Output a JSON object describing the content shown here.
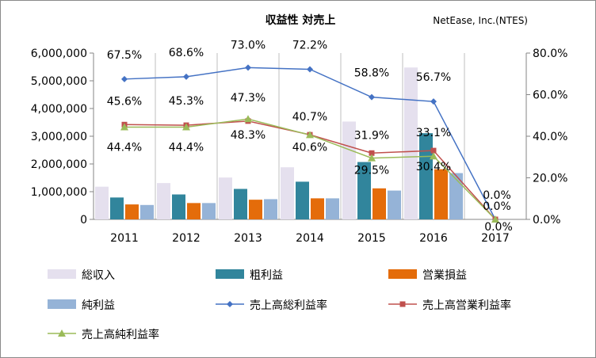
{
  "chart_data": {
    "type": "bar",
    "title": "収益性 対売上",
    "subtitle": "NetEase, Inc.(NTES)",
    "categories": [
      "2011",
      "2012",
      "2013",
      "2014",
      "2015",
      "2016",
      "2017"
    ],
    "series": [
      {
        "name": "総収入",
        "kind": "bar",
        "axis": "left",
        "color": "#E5E0EE",
        "values": [
          1180000,
          1310000,
          1510000,
          1880000,
          3530000,
          5480000,
          null
        ]
      },
      {
        "name": "粗利益",
        "kind": "bar",
        "axis": "left",
        "color": "#31859C",
        "values": [
          790000,
          900000,
          1100000,
          1360000,
          2070000,
          3110000,
          null
        ]
      },
      {
        "name": "営業損益",
        "kind": "bar",
        "axis": "left",
        "color": "#E46C0A",
        "values": [
          540000,
          590000,
          710000,
          760000,
          1120000,
          1810000,
          null
        ]
      },
      {
        "name": "純利益",
        "kind": "bar",
        "axis": "left",
        "color": "#95B3D7",
        "values": [
          520000,
          590000,
          730000,
          760000,
          1040000,
          1670000,
          null
        ]
      },
      {
        "name": "売上高総利益率",
        "kind": "line",
        "axis": "right",
        "color": "#4472C4",
        "marker": "diamond",
        "values": [
          0.675,
          0.686,
          0.73,
          0.722,
          0.588,
          0.567,
          0.0
        ]
      },
      {
        "name": "売上高営業利益率",
        "kind": "line",
        "axis": "right",
        "color": "#C0504D",
        "marker": "square",
        "values": [
          0.456,
          0.453,
          0.473,
          0.407,
          0.319,
          0.331,
          0.0
        ]
      },
      {
        "name": "売上高純利益率",
        "kind": "line",
        "axis": "right",
        "color": "#9BBB59",
        "marker": "triangle",
        "values": [
          0.444,
          0.444,
          0.483,
          0.406,
          0.295,
          0.304,
          0.0
        ]
      }
    ],
    "left_axis": {
      "min": 0,
      "max": 6000000,
      "ticks": [
        "0",
        "1,000,000",
        "2,000,000",
        "3,000,000",
        "4,000,000",
        "5,000,000",
        "6,000,000"
      ]
    },
    "right_axis": {
      "min": 0,
      "max": 0.8,
      "ticks": [
        "0.0%",
        "20.0%",
        "40.0%",
        "60.0%",
        "80.0%"
      ]
    },
    "data_labels": {
      "gross": [
        "67.5%",
        "68.6%",
        "73.0%",
        "72.2%",
        "58.8%",
        "56.7%",
        "0.0%"
      ],
      "operating": [
        "45.6%",
        "45.3%",
        "47.3%",
        "40.7%",
        "31.9%",
        "33.1%",
        "0.0%"
      ],
      "net": [
        "44.4%",
        "44.4%",
        "48.3%",
        "40.6%",
        "29.5%",
        "30.4%",
        "0.0%"
      ]
    },
    "legend_position": "bottom",
    "grid": "vertical"
  }
}
